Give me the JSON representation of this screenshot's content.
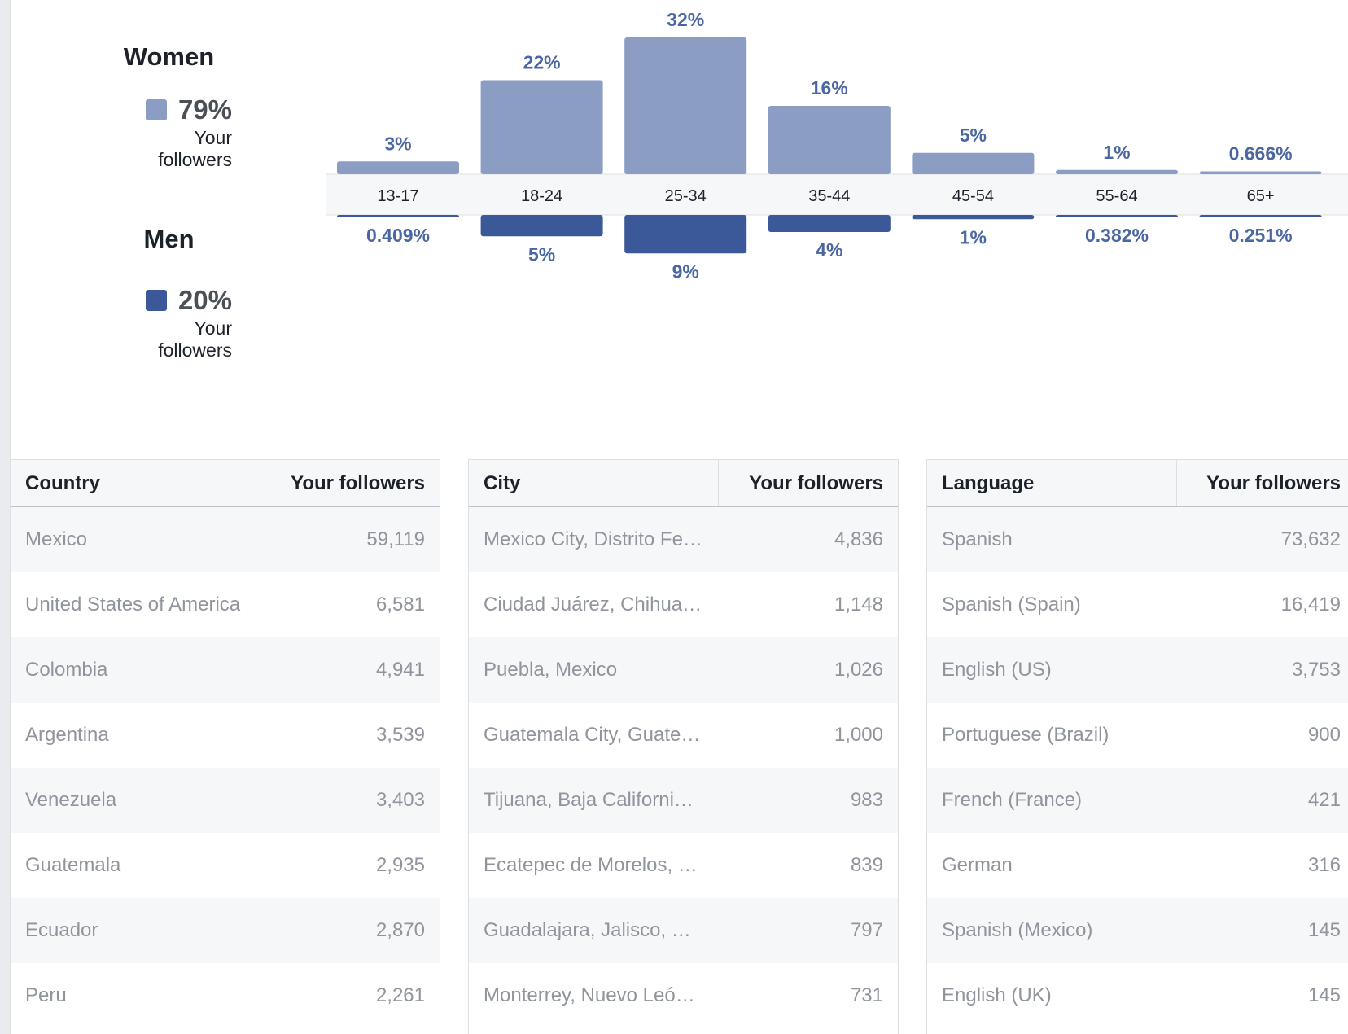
{
  "legend": {
    "women": {
      "title": "Women",
      "percent": "79%",
      "subtitle_line1": "Your",
      "subtitle_line2": "followers",
      "color": "#8b9dc3"
    },
    "men": {
      "title": "Men",
      "percent": "20%",
      "subtitle_line1": "Your",
      "subtitle_line2": "followers",
      "color": "#3b5998"
    }
  },
  "chart_data": {
    "type": "bar",
    "categories": [
      "13-17",
      "18-24",
      "25-34",
      "35-44",
      "45-54",
      "55-64",
      "65+"
    ],
    "series": [
      {
        "name": "Women",
        "values": [
          3,
          22,
          32,
          16,
          5,
          1,
          0.666
        ],
        "labels": [
          "3%",
          "22%",
          "32%",
          "16%",
          "5%",
          "1%",
          "0.666%"
        ],
        "color": "#8b9dc3"
      },
      {
        "name": "Men",
        "values": [
          0.409,
          5,
          9,
          4,
          1,
          0.382,
          0.251
        ],
        "labels": [
          "0.409%",
          "5%",
          "9%",
          "4%",
          "1%",
          "0.382%",
          "0.251%"
        ],
        "color": "#3b5998"
      }
    ],
    "layout": "mirrored",
    "ylim": [
      0,
      32
    ],
    "label_color": "#4b67a1"
  },
  "tables": {
    "country": {
      "headers": [
        "Country",
        "Your followers"
      ],
      "rows": [
        [
          "Mexico",
          "59,119"
        ],
        [
          "United States of America",
          "6,581"
        ],
        [
          "Colombia",
          "4,941"
        ],
        [
          "Argentina",
          "3,539"
        ],
        [
          "Venezuela",
          "3,403"
        ],
        [
          "Guatemala",
          "2,935"
        ],
        [
          "Ecuador",
          "2,870"
        ],
        [
          "Peru",
          "2,261"
        ]
      ]
    },
    "city": {
      "headers": [
        "City",
        "Your followers"
      ],
      "rows": [
        [
          "Mexico City, Distrito Fe…",
          "4,836"
        ],
        [
          "Ciudad Juárez, Chihua…",
          "1,148"
        ],
        [
          "Puebla, Mexico",
          "1,026"
        ],
        [
          "Guatemala City, Guate…",
          "1,000"
        ],
        [
          "Tijuana, Baja California…",
          "983"
        ],
        [
          "Ecatepec de Morelos, …",
          "839"
        ],
        [
          "Guadalajara, Jalisco, …",
          "797"
        ],
        [
          "Monterrey, Nuevo León…",
          "731"
        ]
      ]
    },
    "language": {
      "headers": [
        "Language",
        "Your followers"
      ],
      "rows": [
        [
          "Spanish",
          "73,632"
        ],
        [
          "Spanish (Spain)",
          "16,419"
        ],
        [
          "English (US)",
          "3,753"
        ],
        [
          "Portuguese (Brazil)",
          "900"
        ],
        [
          "French (France)",
          "421"
        ],
        [
          "German",
          "316"
        ],
        [
          "Spanish (Mexico)",
          "145"
        ],
        [
          "English (UK)",
          "145"
        ]
      ]
    }
  }
}
